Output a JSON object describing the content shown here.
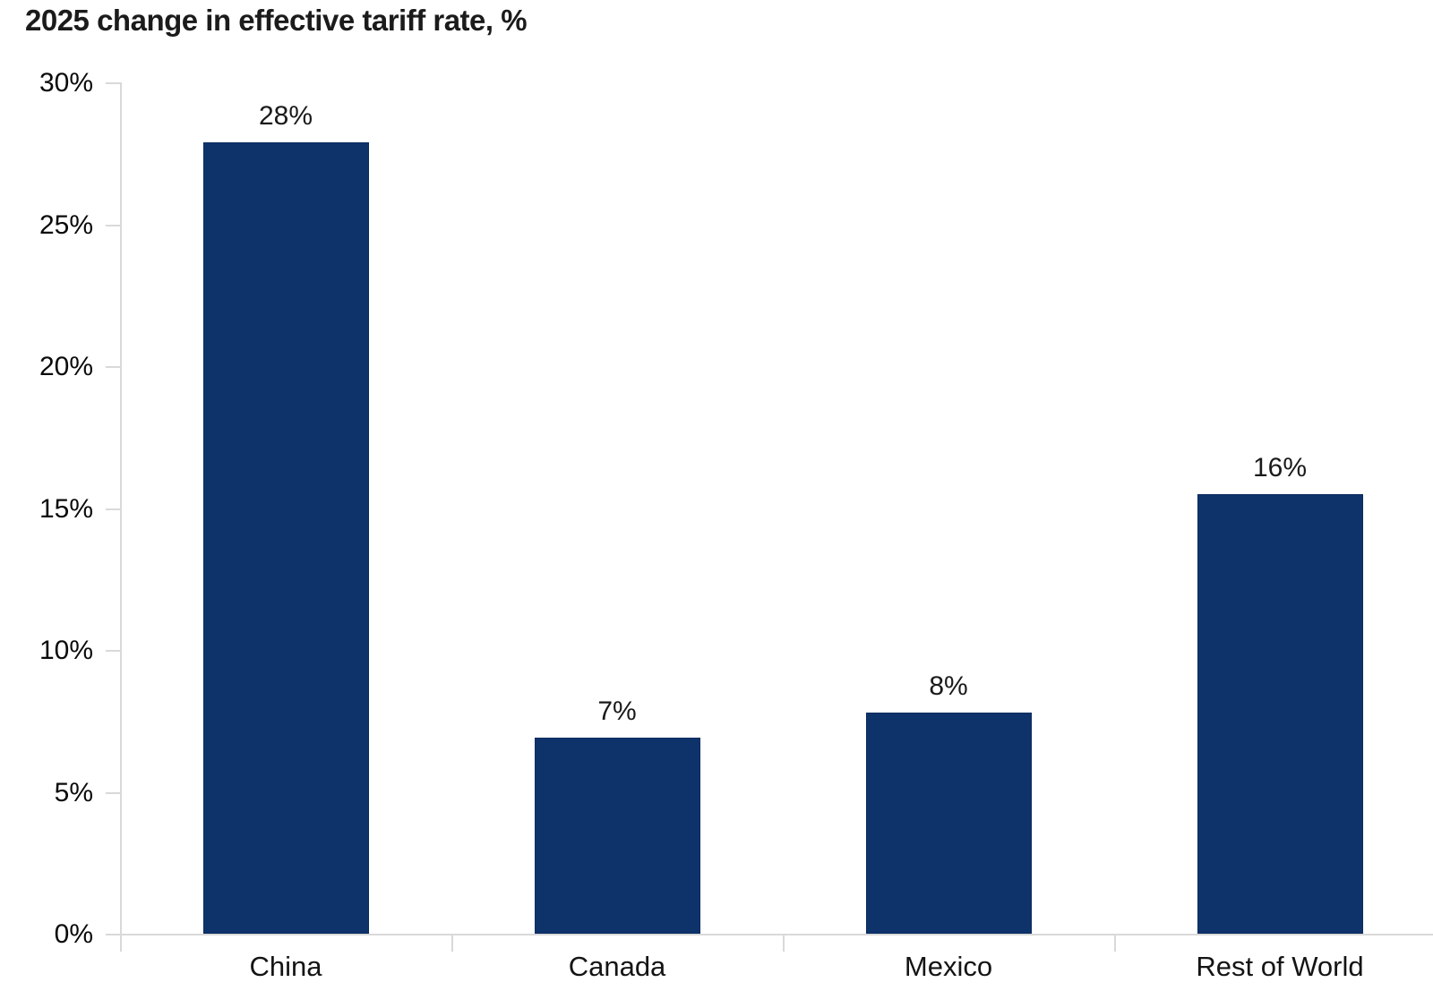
{
  "chart_data": {
    "type": "bar",
    "title": "2025 change in effective tariff rate, %",
    "categories": [
      "China",
      "Canada",
      "Mexico",
      "Rest of World"
    ],
    "series": [
      {
        "name": "2025 change in effective tariff rate",
        "values": [
          27.9,
          6.9,
          7.8,
          15.5
        ],
        "value_labels": [
          "28%",
          "7%",
          "8%",
          "16%"
        ]
      }
    ],
    "xlabel": "",
    "ylabel": "",
    "ylim": [
      0,
      30
    ],
    "yticks": [
      0,
      5,
      10,
      15,
      20,
      25,
      30
    ],
    "ytick_labels": [
      "0%",
      "5%",
      "10%",
      "15%",
      "20%",
      "25%",
      "30%"
    ],
    "grid": false,
    "legend_position": "none",
    "colors": {
      "bar": "#0e336b",
      "bar_border": "#0a2b5e",
      "axis": "#d9d9d9",
      "text": "#1a1a1a"
    }
  }
}
